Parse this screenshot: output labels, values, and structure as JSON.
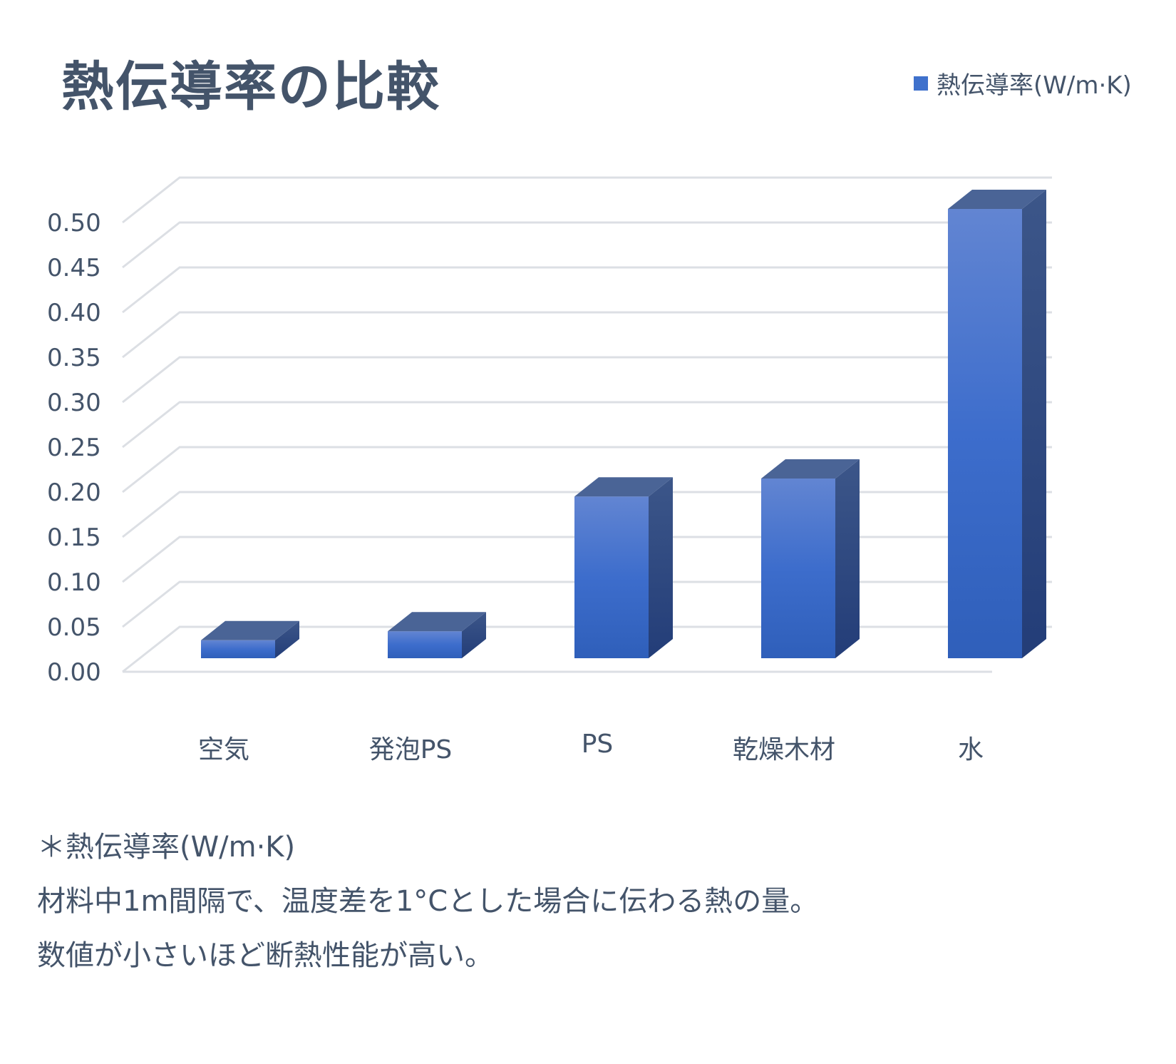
{
  "chart_data": {
    "type": "bar",
    "title": "熱伝導率の比較",
    "categories": [
      "空気",
      "発泡PS",
      "PS",
      "乾燥木材",
      "水"
    ],
    "series": [
      {
        "name": "熱伝導率(W/m·K)",
        "values": [
          0.02,
          0.03,
          0.18,
          0.2,
          0.5
        ]
      }
    ],
    "ylim": [
      0,
      0.5
    ],
    "yticks": [
      "0.00",
      "0.05",
      "0.10",
      "0.15",
      "0.20",
      "0.25",
      "0.30",
      "0.35",
      "0.40",
      "0.45",
      "0.50"
    ],
    "grid": true,
    "legend_position": "top-right",
    "style": "3d-column",
    "colors": {
      "bar_front": "#3f71cc",
      "bar_top": "#4a6496",
      "bar_side": "#2d4a85",
      "grid": "#dcdfe4",
      "text": "#44546a"
    }
  },
  "footnote": {
    "lines": [
      "＊熱伝導率(W/m·K)",
      "材料中1m間隔で、温度差を1°Cとした場合に伝わる熱の量。",
      "数値が小さいほど断熱性能が高い。"
    ]
  }
}
